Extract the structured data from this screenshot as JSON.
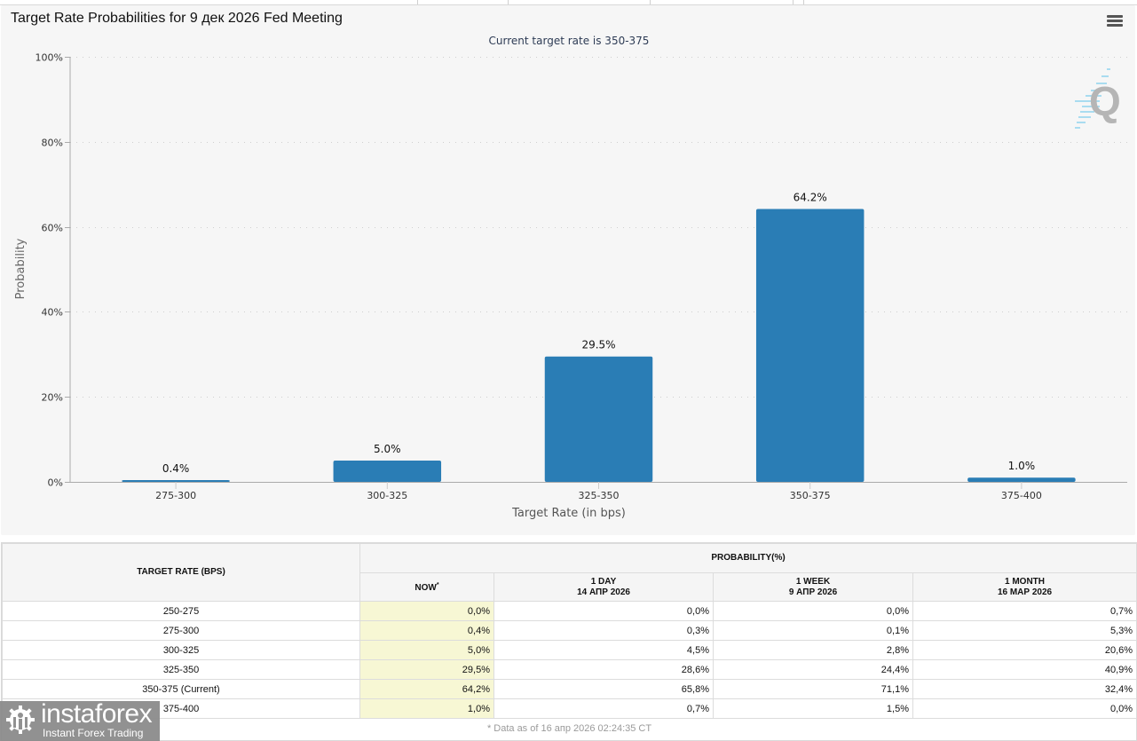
{
  "page": {
    "title": "Target Rate Probabilities for 9 дек 2026 Fed Meeting",
    "menu_icon": "hamburger-menu-icon",
    "watermark_icon": "q-logo-icon"
  },
  "colors": {
    "bar": "#2a7db5",
    "panel_bg": "#f6f6f6",
    "now_column_bg": "#f7f7d4"
  },
  "chart_data": {
    "type": "bar",
    "title": "Target Rate Probabilities for 9 дек 2026 Fed Meeting",
    "subtitle": "Current target rate is 350-375",
    "xlabel": "Target Rate (in bps)",
    "ylabel": "Probability",
    "categories": [
      "275-300",
      "300-325",
      "325-350",
      "350-375",
      "375-400"
    ],
    "values": [
      0.4,
      5.0,
      29.5,
      64.2,
      1.0
    ],
    "data_labels": [
      "0.4%",
      "5.0%",
      "29.5%",
      "64.2%",
      "1.0%"
    ],
    "ylim": [
      0,
      100
    ],
    "yticks": [
      0,
      20,
      40,
      60,
      80,
      100
    ],
    "ytick_labels": [
      "0%",
      "20%",
      "40%",
      "60%",
      "80%",
      "100%"
    ],
    "grid": true,
    "legend": "none"
  },
  "table": {
    "col_target": "TARGET RATE (BPS)",
    "col_group": "PROBABILITY(%)",
    "col_now": "NOW",
    "col_now_mark": "*",
    "col_1day": "1 DAY",
    "col_1day_date": "14 АПР 2026",
    "col_1week": "1 WEEK",
    "col_1week_date": "9 АПР 2026",
    "col_1month": "1 MONTH",
    "col_1month_date": "16 МАР 2026",
    "rows": [
      {
        "rate": "250-275",
        "now": "0,0%",
        "day": "0,0%",
        "week": "0,0%",
        "month": "0,7%"
      },
      {
        "rate": "275-300",
        "now": "0,4%",
        "day": "0,3%",
        "week": "0,1%",
        "month": "5,3%"
      },
      {
        "rate": "300-325",
        "now": "5,0%",
        "day": "4,5%",
        "week": "2,8%",
        "month": "20,6%"
      },
      {
        "rate": "325-350",
        "now": "29,5%",
        "day": "28,6%",
        "week": "24,4%",
        "month": "40,9%"
      },
      {
        "rate": "350-375 (Current)",
        "now": "64,2%",
        "day": "65,8%",
        "week": "71,1%",
        "month": "32,4%"
      },
      {
        "rate": "375-400",
        "now": "1,0%",
        "day": "0,7%",
        "week": "1,5%",
        "month": "0,0%"
      }
    ],
    "footnote": "* Data as of 16 апр 2026 02:24:35 CT"
  },
  "logo": {
    "brand": "instaforex",
    "tagline": "Instant Forex Trading",
    "icon": "instaforex-gear-icon"
  }
}
